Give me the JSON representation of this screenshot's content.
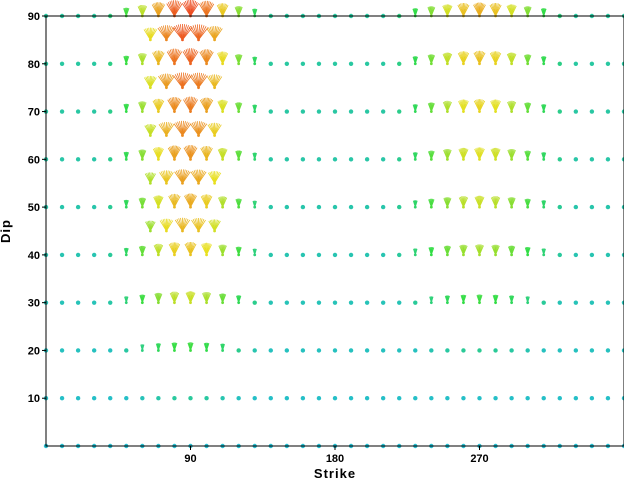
{
  "chart_data": {
    "type": "scatter",
    "title": "",
    "xlabel": "Strike",
    "ylabel": "Dip",
    "xlim": [
      0,
      360
    ],
    "ylim": [
      0,
      90
    ],
    "xticks": [
      90,
      180,
      270
    ],
    "yticks": [
      10,
      20,
      30,
      40,
      50,
      60,
      70,
      80,
      90
    ],
    "grid": false,
    "legend": "none",
    "x_step": 10,
    "dip_rows": [
      0,
      10,
      20,
      30,
      40,
      50,
      60,
      70,
      80,
      90
    ],
    "half_rows": [
      45,
      55,
      65,
      75,
      85
    ],
    "half_row_strikes": [
      65,
      105
    ],
    "hot_clusters": [
      {
        "strike_center": 88,
        "strike_halfwidth": 22,
        "dip_min": 38,
        "dip_max": 92,
        "peak": 0.95
      },
      {
        "strike_center": 270,
        "strike_halfwidth": 25,
        "dip_min": 45,
        "dip_max": 92,
        "peak": 0.75
      }
    ],
    "colors": {
      "low": "#22b8e6",
      "mid": "#33dd44",
      "high_mid": "#e8e020",
      "high": "#ee3322",
      "axis": "#000000"
    }
  }
}
